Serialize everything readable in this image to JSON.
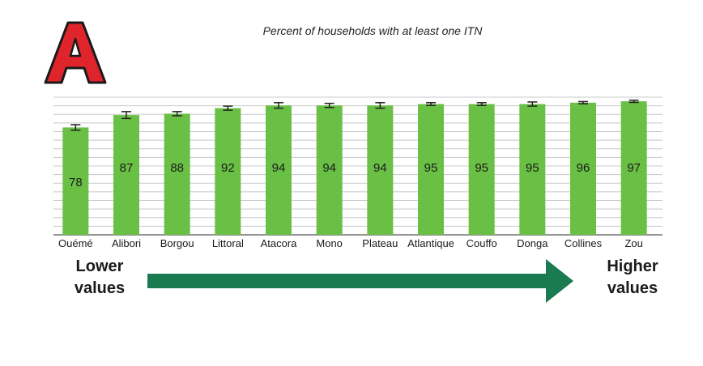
{
  "panel": {
    "letter": "A"
  },
  "chart_data": {
    "type": "bar",
    "title": "Percent of households with at least one ITN",
    "categories": [
      "Ouémé",
      "Alibori",
      "Borgou",
      "Littoral",
      "Atacora",
      "Mono",
      "Plateau",
      "Atlantique",
      "Couffo",
      "Donga",
      "Collines",
      "Zou"
    ],
    "values": [
      78,
      87,
      88,
      92,
      94,
      94,
      94,
      95,
      95,
      95,
      96,
      97
    ],
    "error_margin": [
      2,
      2.5,
      1.5,
      1.5,
      2,
      1.5,
      2,
      1,
      1,
      1.5,
      0.8,
      0.8
    ],
    "xlabel": "",
    "ylabel": "",
    "ylim": [
      0,
      100
    ],
    "grid": true,
    "bar_color": "#6ac045",
    "errorbar_color": "#222222"
  },
  "annotation": {
    "lower_line1": "Lower",
    "lower_line2": "values",
    "higher_line1": "Higher",
    "higher_line2": "values",
    "arrow_color": "#1a7a50"
  }
}
